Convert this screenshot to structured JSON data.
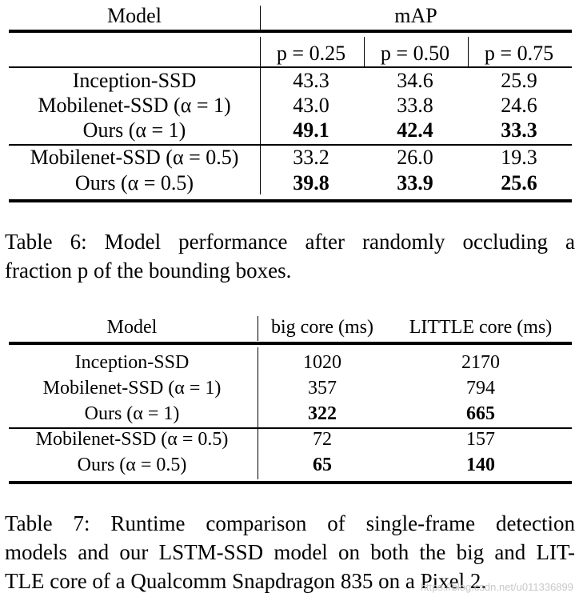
{
  "table6": {
    "headers": {
      "model": "Model",
      "map": "mAP"
    },
    "subheaders": [
      "p = 0.25",
      "p = 0.50",
      "p = 0.75"
    ],
    "rows": [
      {
        "model": "Inception-SSD",
        "values": [
          "43.3",
          "34.6",
          "25.9"
        ]
      },
      {
        "model": "Mobilenet-SSD (α = 1)",
        "values": [
          "43.0",
          "33.8",
          "24.6"
        ]
      },
      {
        "model": "Ours (α = 1)",
        "values": [
          "49.1",
          "42.4",
          "33.3"
        ]
      },
      {
        "model": "Mobilenet-SSD (α = 0.5)",
        "values": [
          "33.2",
          "26.0",
          "19.3"
        ]
      },
      {
        "model": "Ours (α = 0.5)",
        "values": [
          "39.8",
          "33.9",
          "25.6"
        ]
      }
    ],
    "caption": {
      "line1": "Table 6: Model performance after randomly occluding a",
      "line2": "fraction p of the bounding boxes."
    }
  },
  "table7": {
    "headers": {
      "model": "Model",
      "big": "big core (ms)",
      "little": "LITTLE core (ms)"
    },
    "rows": [
      {
        "model": "Inception-SSD",
        "values": [
          "1020",
          "2170"
        ]
      },
      {
        "model": "Mobilenet-SSD (α = 1)",
        "values": [
          "357",
          "794"
        ]
      },
      {
        "model": "Ours (α = 1)",
        "values": [
          "322",
          "665"
        ]
      },
      {
        "model": "Mobilenet-SSD (α = 0.5)",
        "values": [
          "72",
          "157"
        ]
      },
      {
        "model": "Ours (α = 0.5)",
        "values": [
          "65",
          "140"
        ]
      }
    ],
    "caption": {
      "line1": "Table 7: Runtime comparison of single-frame detection",
      "line2": "models and our LSTM-SSD model on both the big and LIT-",
      "line3": "TLE core of a Qualcomm Snapdragon 835 on a Pixel 2."
    }
  },
  "watermark": "https://blog.csdn.net/u011336899"
}
